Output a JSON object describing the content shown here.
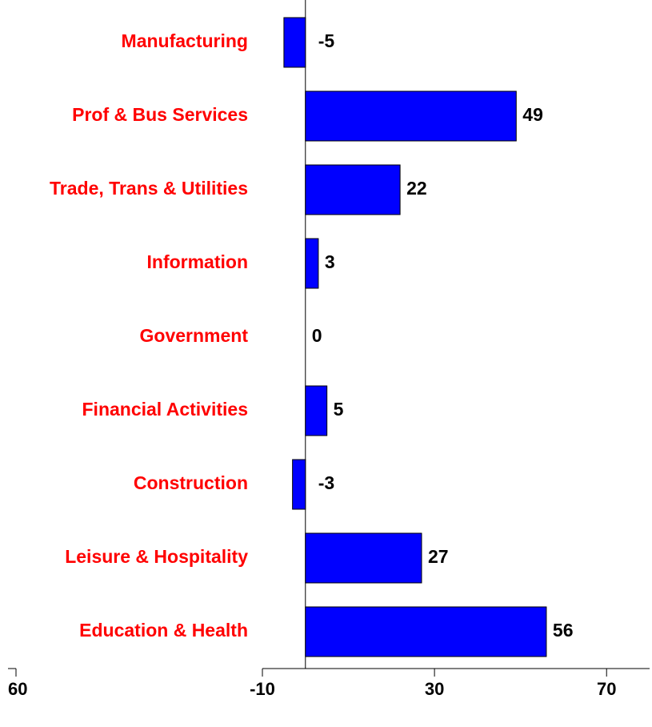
{
  "chart_data": {
    "type": "hbar",
    "categories": [
      "Manufacturing",
      "Prof & Bus Services",
      "Trade, Trans & Utilities",
      "Information",
      "Government",
      "Financial Activities",
      "Construction",
      "Leisure & Hospitality",
      "Education & Health"
    ],
    "values": [
      -5,
      49,
      22,
      3,
      0,
      5,
      -3,
      27,
      56
    ],
    "color": "#0000ff",
    "label_color": "#ff0000",
    "xlim": [
      -10,
      80
    ],
    "xticks": [
      -10,
      30,
      70
    ],
    "annotations": [
      "60"
    ]
  }
}
